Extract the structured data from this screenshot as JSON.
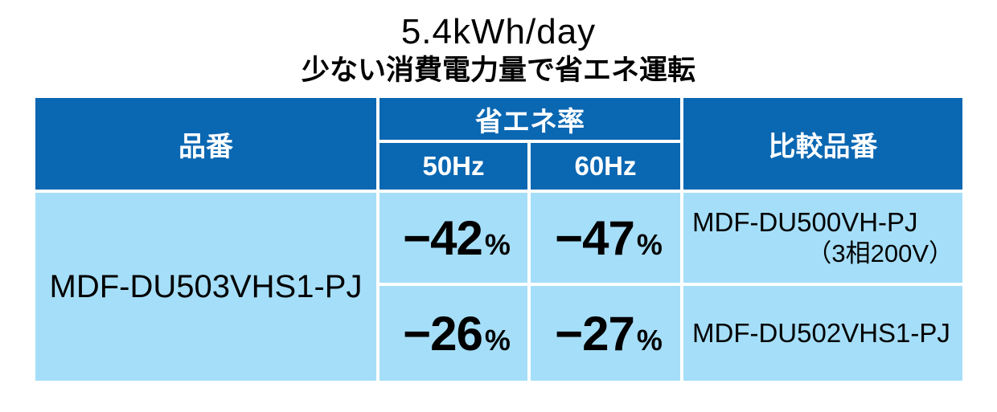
{
  "page": {
    "title": "5.4kWh/day",
    "subtitle": "少ない消費電力量で省エネ運転"
  },
  "table": {
    "headers": {
      "product": "品番",
      "savings_rate": "省エネ率",
      "hz50": "50Hz",
      "hz60": "60Hz",
      "comparison": "比較品番"
    },
    "product_model": "MDF-DU503VHS1-PJ",
    "rows": [
      {
        "hz50_value": "−42",
        "hz50_unit": "%",
        "hz60_value": "−47",
        "hz60_unit": "%",
        "comparison_model": "MDF-DU500VH-PJ",
        "comparison_note": "（3相200V）"
      },
      {
        "hz50_value": "−26",
        "hz50_unit": "%",
        "hz60_value": "−27",
        "hz60_unit": "%",
        "comparison_model": "MDF-DU502VHS1-PJ",
        "comparison_note": ""
      }
    ]
  },
  "colors": {
    "header_bg": "#0a67b2",
    "body_bg": "#a5def8",
    "header_text": "#ffffff",
    "body_text": "#000000"
  }
}
